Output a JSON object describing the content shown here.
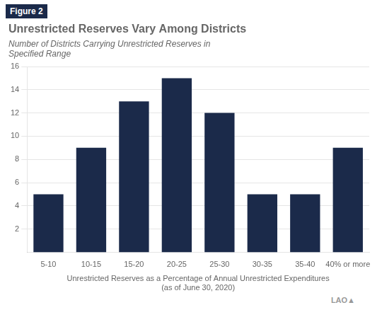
{
  "chart_data": {
    "type": "bar",
    "title": "Unrestricted Reserves Vary Among Districts",
    "subtitle": "Number of Districts Carrying Unrestricted Reserves in\nSpecified Range",
    "categories": [
      "5-10",
      "10-15",
      "15-20",
      "20-25",
      "25-30",
      "30-35",
      "35-40",
      "40% or more"
    ],
    "values": [
      5,
      9,
      13,
      15,
      12,
      5,
      5,
      9
    ],
    "color": "#1b2a4a",
    "xlabel": "Unrestricted Reserves as a Percentage of Annual Unrestricted Expenditures\n(as of June 30, 2020)",
    "ylim": [
      0,
      16
    ],
    "yticks": [
      2,
      4,
      6,
      8,
      10,
      12,
      14,
      16
    ],
    "grid": true,
    "annotations": [
      "Figure 2",
      "LAO▲"
    ]
  }
}
